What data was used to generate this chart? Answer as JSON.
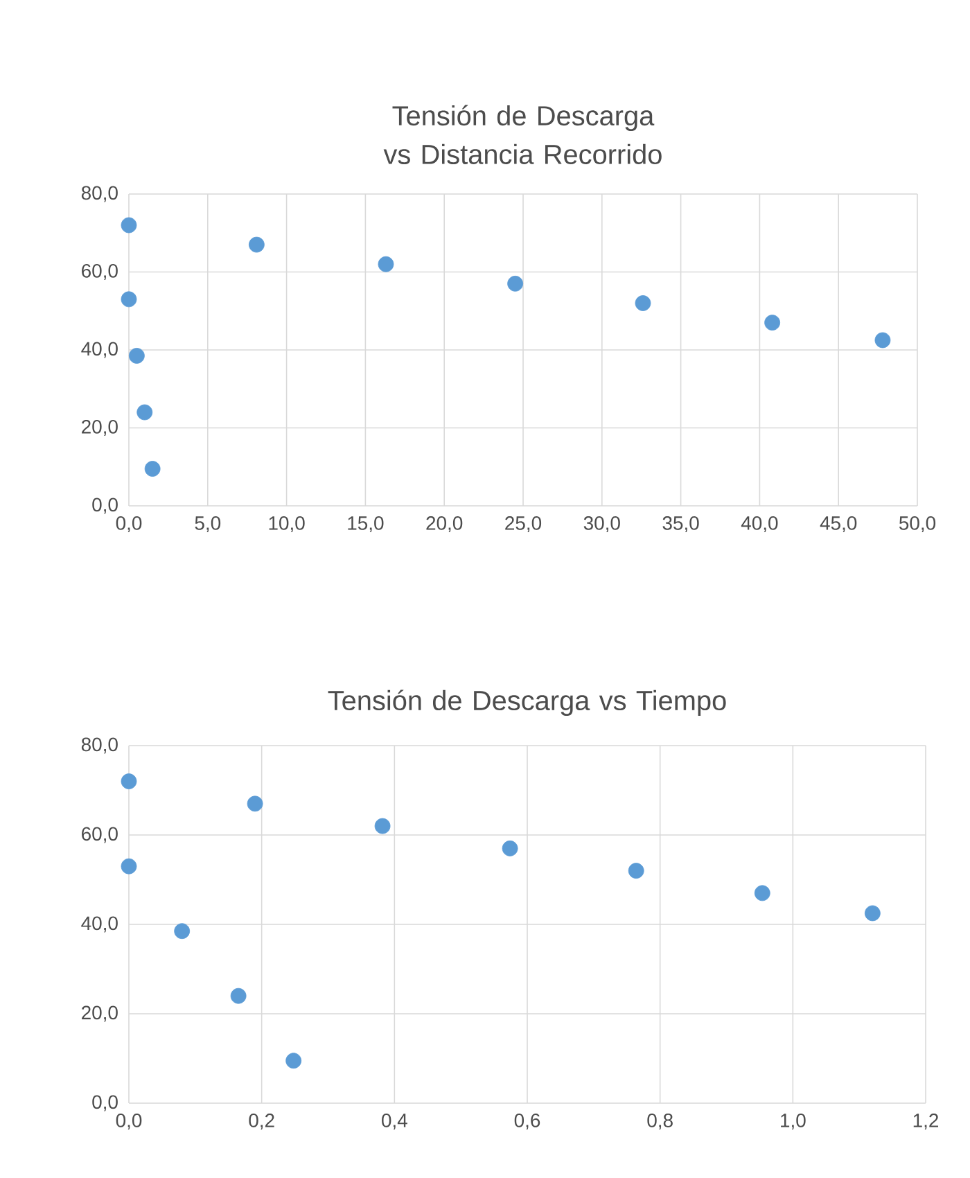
{
  "chart_data": [
    {
      "type": "scatter",
      "title": "Tensión de Descarga vs Distancia Recorrido",
      "marker": "circle",
      "grid": true,
      "color": "#5b9bd5",
      "x": [
        0,
        0,
        0.5,
        1.0,
        1.5,
        8.1,
        16.3,
        24.5,
        32.6,
        40.8,
        47.8
      ],
      "values": [
        72,
        53,
        38.5,
        24,
        9.5,
        67,
        62,
        57,
        52,
        47,
        42.5
      ],
      "xlim": [
        0,
        50
      ],
      "ylim": [
        0,
        80
      ],
      "xticks": [
        {
          "value": 0,
          "label": "0,0"
        },
        {
          "value": 5,
          "label": "5,0"
        },
        {
          "value": 10,
          "label": "10,0"
        },
        {
          "value": 15,
          "label": "15,0"
        },
        {
          "value": 20,
          "label": "20,0"
        },
        {
          "value": 25,
          "label": "25,0"
        },
        {
          "value": 30,
          "label": "30,0"
        },
        {
          "value": 35,
          "label": "35,0"
        },
        {
          "value": 40,
          "label": "40,0"
        },
        {
          "value": 45,
          "label": "45,0"
        },
        {
          "value": 50,
          "label": "50,0"
        }
      ],
      "yticks": [
        {
          "value": 0,
          "label": "0,0"
        },
        {
          "value": 20,
          "label": "20,0"
        },
        {
          "value": 40,
          "label": "40,0"
        },
        {
          "value": 60,
          "label": "60,0"
        },
        {
          "value": 80,
          "label": "80,0"
        }
      ]
    },
    {
      "type": "scatter",
      "title": "Tensión de Descarga vs Tiempo",
      "marker": "circle",
      "grid": true,
      "color": "#5b9bd5",
      "x": [
        0,
        0,
        0.08,
        0.165,
        0.248,
        0.19,
        0.382,
        0.574,
        0.764,
        0.954,
        1.12
      ],
      "values": [
        72,
        53,
        38.5,
        24,
        9.5,
        67,
        62,
        57,
        52,
        47,
        42.5
      ],
      "xlim": [
        0,
        1.2
      ],
      "ylim": [
        0,
        80
      ],
      "xticks": [
        {
          "value": 0,
          "label": "0,0"
        },
        {
          "value": 0.2,
          "label": "0,2"
        },
        {
          "value": 0.4,
          "label": "0,4"
        },
        {
          "value": 0.6,
          "label": "0,6"
        },
        {
          "value": 0.8,
          "label": "0,8"
        },
        {
          "value": 1.0,
          "label": "1,0"
        },
        {
          "value": 1.2,
          "label": "1,2"
        }
      ],
      "yticks": [
        {
          "value": 0,
          "label": "0,0"
        },
        {
          "value": 20,
          "label": "20,0"
        },
        {
          "value": 40,
          "label": "40,0"
        },
        {
          "value": 60,
          "label": "60,0"
        },
        {
          "value": 80,
          "label": "80,0"
        }
      ]
    }
  ]
}
